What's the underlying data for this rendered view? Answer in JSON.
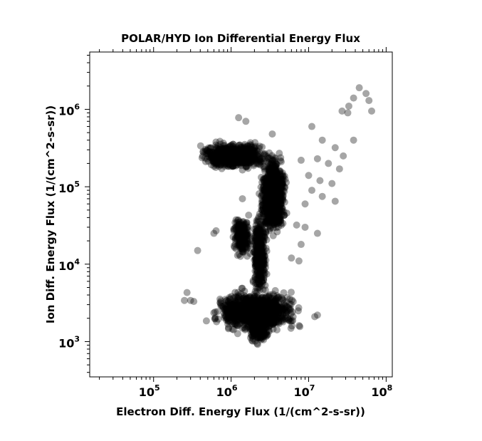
{
  "chart_data": {
    "type": "scatter",
    "title": "POLAR/HYD  Ion Differential Energy Flux",
    "xlabel": "Electron Diff. Energy Flux (1/(cm^2-s-sr))",
    "ylabel": "Ion Diff. Energy Flux (1/(cm^2-s-sr))",
    "x_scale": "log",
    "y_scale": "log",
    "xlim": [
      15000,
      120000000
    ],
    "ylim": [
      350,
      5500000
    ],
    "x_ticks": [
      {
        "base": "10",
        "exp": "5",
        "value": 100000
      },
      {
        "base": "10",
        "exp": "6",
        "value": 1000000
      },
      {
        "base": "10",
        "exp": "7",
        "value": 10000000
      },
      {
        "base": "10",
        "exp": "8",
        "value": 100000000
      }
    ],
    "y_ticks": [
      {
        "base": "10",
        "exp": "3",
        "value": 1000
      },
      {
        "base": "10",
        "exp": "4",
        "value": 10000
      },
      {
        "base": "10",
        "exp": "5",
        "value": 100000
      },
      {
        "base": "10",
        "exp": "6",
        "value": 1000000
      }
    ],
    "grid": false,
    "marker_color": "#000000",
    "marker_opacity": 0.35,
    "clusters": [
      {
        "x": [
          350000,
          3500000
        ],
        "y": [
          160000,
          400000
        ],
        "count": 700
      },
      {
        "x": [
          2200000,
          5500000
        ],
        "y": [
          20000,
          320000
        ],
        "count": 900
      },
      {
        "x": [
          1800000,
          3000000
        ],
        "y": [
          3000,
          60000
        ],
        "count": 350
      },
      {
        "x": [
          1000000,
          1900000
        ],
        "y": [
          10000,
          50000
        ],
        "count": 200
      },
      {
        "x": [
          500000,
          9000000
        ],
        "y": [
          1200,
          5000
        ],
        "count": 1100
      },
      {
        "x": [
          1600000,
          3200000
        ],
        "y": [
          900,
          2000
        ],
        "count": 120
      }
    ],
    "points": [
      {
        "x": 45000000,
        "y": 1900000
      },
      {
        "x": 55000000,
        "y": 1600000
      },
      {
        "x": 38000000,
        "y": 1400000
      },
      {
        "x": 60000000,
        "y": 1300000
      },
      {
        "x": 33000000,
        "y": 1100000
      },
      {
        "x": 27000000,
        "y": 950000
      },
      {
        "x": 65000000,
        "y": 950000
      },
      {
        "x": 32000000,
        "y": 900000
      },
      {
        "x": 1250000,
        "y": 780000
      },
      {
        "x": 1550000,
        "y": 700000
      },
      {
        "x": 11000000,
        "y": 600000
      },
      {
        "x": 3400000,
        "y": 480000
      },
      {
        "x": 15000000,
        "y": 400000
      },
      {
        "x": 38000000,
        "y": 400000
      },
      {
        "x": 22000000,
        "y": 320000
      },
      {
        "x": 28000000,
        "y": 250000
      },
      {
        "x": 13000000,
        "y": 230000
      },
      {
        "x": 8000000,
        "y": 220000
      },
      {
        "x": 18000000,
        "y": 200000
      },
      {
        "x": 25000000,
        "y": 170000
      },
      {
        "x": 10000000,
        "y": 140000
      },
      {
        "x": 14000000,
        "y": 120000
      },
      {
        "x": 20000000,
        "y": 110000
      },
      {
        "x": 11000000,
        "y": 90000
      },
      {
        "x": 15000000,
        "y": 75000
      },
      {
        "x": 22000000,
        "y": 65000
      },
      {
        "x": 9000000,
        "y": 60000
      },
      {
        "x": 1400000,
        "y": 70000
      },
      {
        "x": 600000,
        "y": 25000
      },
      {
        "x": 640000,
        "y": 27000
      },
      {
        "x": 370000,
        "y": 15000
      },
      {
        "x": 7000000,
        "y": 32000
      },
      {
        "x": 9000000,
        "y": 30000
      },
      {
        "x": 13000000,
        "y": 25000
      },
      {
        "x": 8000000,
        "y": 18000
      },
      {
        "x": 6000000,
        "y": 12000
      },
      {
        "x": 7500000,
        "y": 11000
      },
      {
        "x": 250000,
        "y": 3400
      },
      {
        "x": 270000,
        "y": 4300
      },
      {
        "x": 330000,
        "y": 3300
      },
      {
        "x": 300000,
        "y": 3400
      },
      {
        "x": 12000000,
        "y": 2100
      },
      {
        "x": 13000000,
        "y": 2200
      },
      {
        "x": 480000,
        "y": 1850
      },
      {
        "x": 2200000,
        "y": 920
      }
    ]
  }
}
